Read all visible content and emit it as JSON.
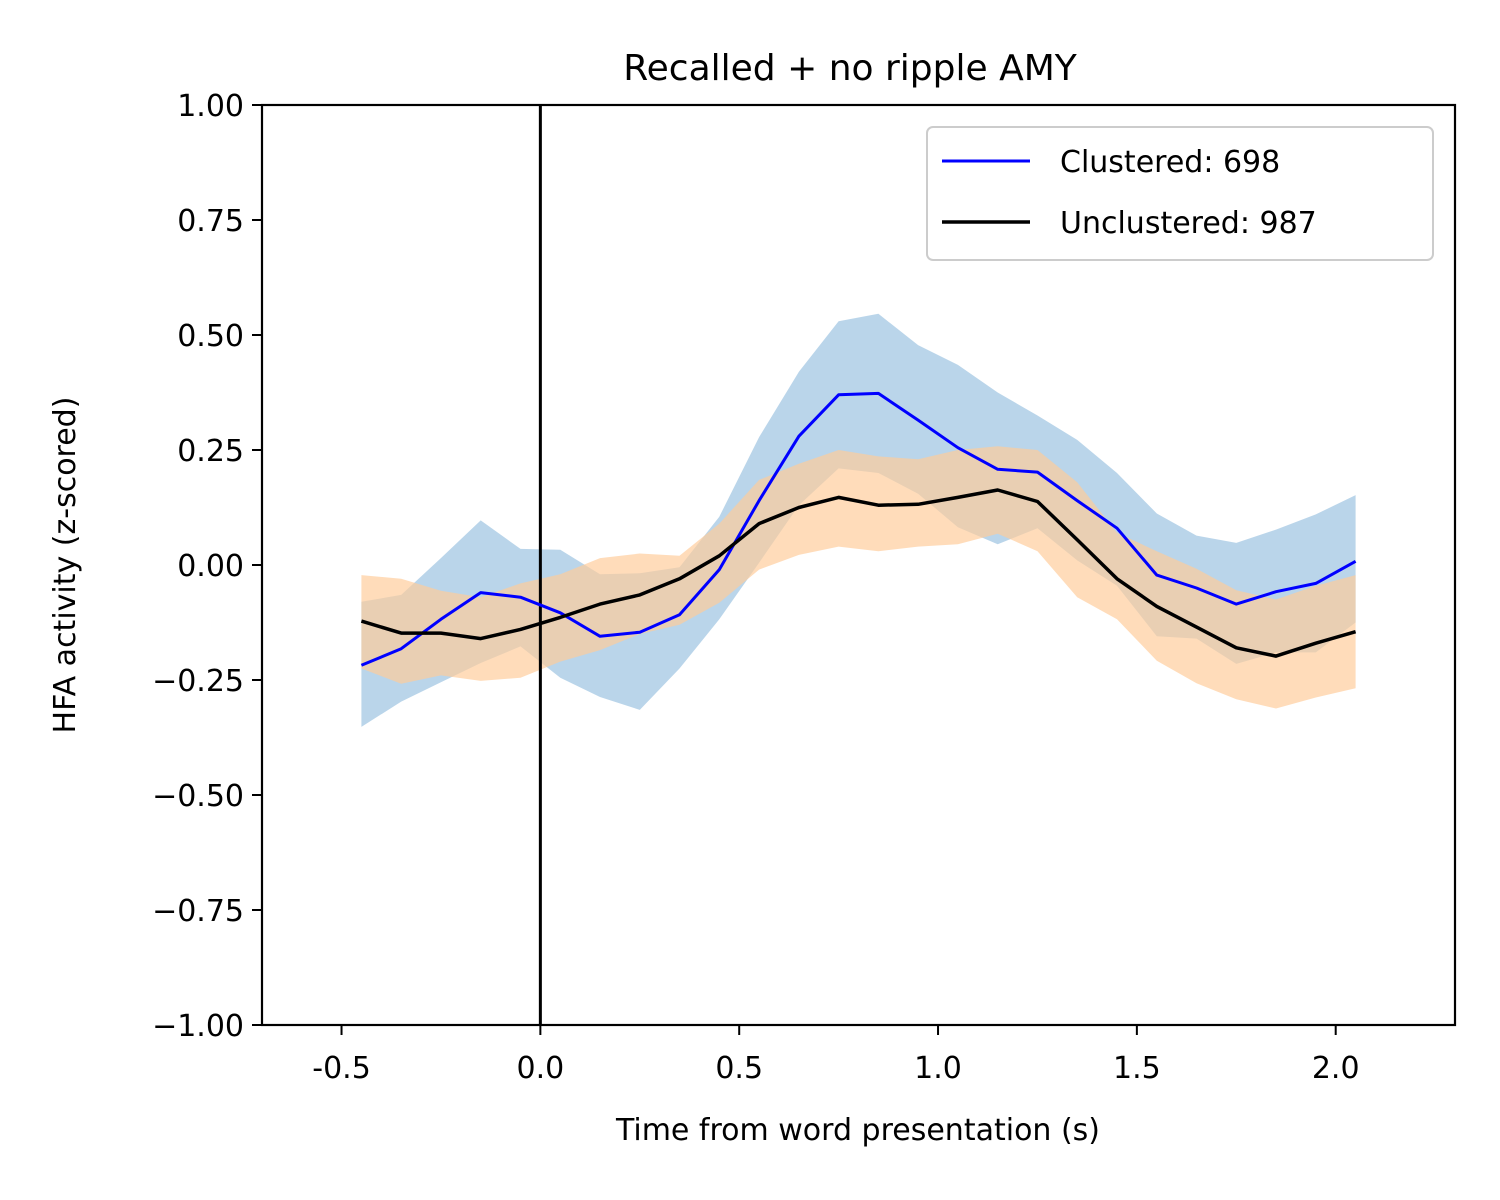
{
  "chart_data": {
    "type": "line",
    "title": "Recalled + no ripple AMY",
    "xlabel": "Time from word presentation (s)",
    "ylabel": "HFA activity (z-scored)",
    "xlim": [
      -0.7,
      2.3
    ],
    "ylim": [
      -1.0,
      1.0
    ],
    "x_ticks": [
      -0.5,
      0.0,
      0.5,
      1.0,
      1.5,
      2.0
    ],
    "x_tick_labels": [
      "-0.5",
      "0.0",
      "0.5",
      "1.0",
      "1.5",
      "2.0"
    ],
    "y_ticks": [
      1.0,
      0.75,
      0.5,
      0.25,
      0.0,
      -0.25,
      -0.5,
      -0.75,
      -1.0
    ],
    "y_tick_labels": [
      "1.00",
      "0.75",
      "0.50",
      "0.25",
      "0.00",
      "−0.25",
      "−0.50",
      "−0.75",
      "−1.00"
    ],
    "vline_x": 0.0,
    "grid": false,
    "legend_position": "upper-right",
    "x": [
      -0.45,
      -0.35,
      -0.25,
      -0.15,
      -0.05,
      0.05,
      0.15,
      0.25,
      0.35,
      0.45,
      0.55,
      0.65,
      0.75,
      0.85,
      0.95,
      1.05,
      1.15,
      1.25,
      1.35,
      1.45,
      1.55,
      1.65,
      1.75,
      1.85,
      1.95,
      2.05
    ],
    "series": [
      {
        "name": "Clustered: 698",
        "color": "#0000ff",
        "band_color": "#8fbcdd",
        "values": [
          -0.218,
          -0.182,
          -0.118,
          -0.06,
          -0.07,
          -0.104,
          -0.155,
          -0.146,
          -0.108,
          -0.01,
          0.14,
          0.28,
          0.37,
          0.373,
          0.315,
          0.255,
          0.208,
          0.202,
          0.14,
          0.08,
          -0.022,
          -0.05,
          -0.085,
          -0.058,
          -0.04,
          0.008
        ],
        "upper": [
          -0.08,
          -0.065,
          0.015,
          0.097,
          0.035,
          0.033,
          -0.02,
          -0.018,
          -0.005,
          0.105,
          0.278,
          0.42,
          0.53,
          0.546,
          0.478,
          0.435,
          0.375,
          0.325,
          0.272,
          0.2,
          0.112,
          0.064,
          0.048,
          0.077,
          0.11,
          0.152
        ],
        "lower": [
          -0.352,
          -0.297,
          -0.255,
          -0.213,
          -0.177,
          -0.245,
          -0.287,
          -0.315,
          -0.225,
          -0.118,
          0.005,
          0.13,
          0.21,
          0.2,
          0.155,
          0.082,
          0.045,
          0.08,
          0.01,
          -0.045,
          -0.155,
          -0.16,
          -0.215,
          -0.19,
          -0.19,
          -0.125
        ]
      },
      {
        "name": "Unclustered: 987",
        "color": "#000000",
        "band_color": "#ffcc99",
        "values": [
          -0.122,
          -0.148,
          -0.148,
          -0.16,
          -0.14,
          -0.114,
          -0.085,
          -0.065,
          -0.03,
          0.02,
          0.09,
          0.125,
          0.147,
          0.13,
          0.132,
          0.147,
          0.163,
          0.138,
          0.055,
          -0.03,
          -0.09,
          -0.135,
          -0.18,
          -0.198,
          -0.17,
          -0.145
        ],
        "upper": [
          -0.022,
          -0.03,
          -0.056,
          -0.07,
          -0.04,
          -0.02,
          0.015,
          0.025,
          0.02,
          0.09,
          0.185,
          0.22,
          0.25,
          0.236,
          0.23,
          0.25,
          0.258,
          0.25,
          0.18,
          0.07,
          0.03,
          -0.008,
          -0.055,
          -0.075,
          -0.045,
          -0.022
        ],
        "lower": [
          -0.225,
          -0.258,
          -0.24,
          -0.252,
          -0.245,
          -0.21,
          -0.185,
          -0.15,
          -0.13,
          -0.082,
          -0.01,
          0.022,
          0.04,
          0.03,
          0.04,
          0.045,
          0.068,
          0.03,
          -0.07,
          -0.118,
          -0.208,
          -0.257,
          -0.292,
          -0.312,
          -0.288,
          -0.268
        ]
      }
    ]
  }
}
